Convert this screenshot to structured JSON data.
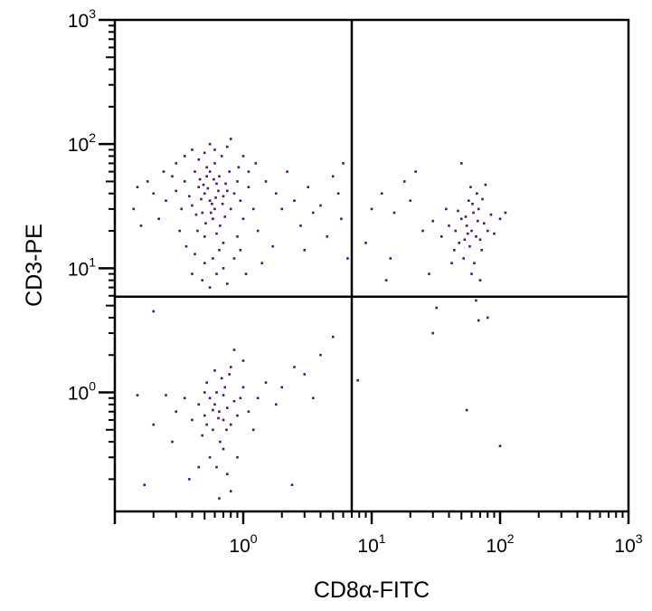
{
  "chart_data": {
    "type": "scatter",
    "xlabel": "CD8α-FITC",
    "ylabel": "CD3-PE",
    "xscale": "log",
    "yscale": "log",
    "xlim": [
      0.1,
      1000
    ],
    "ylim": [
      0.11,
      1000
    ],
    "xticks": [
      {
        "base": "10",
        "exp": "0",
        "value": 1
      },
      {
        "base": "10",
        "exp": "1",
        "value": 10
      },
      {
        "base": "10",
        "exp": "2",
        "value": 100
      },
      {
        "base": "10",
        "exp": "3",
        "value": 1000
      }
    ],
    "yticks": [
      {
        "base": "10",
        "exp": "0",
        "value": 1
      },
      {
        "base": "10",
        "exp": "1",
        "value": 10
      },
      {
        "base": "10",
        "exp": "2",
        "value": 100
      },
      {
        "base": "10",
        "exp": "3",
        "value": 1000
      }
    ],
    "quadrant_gates": {
      "x": 7,
      "y": 5.9
    },
    "point_color": "#4b1670",
    "grid": false,
    "points": [
      [
        0.55,
        35
      ],
      [
        0.5,
        40
      ],
      [
        0.6,
        30
      ],
      [
        0.45,
        45
      ],
      [
        0.7,
        38
      ],
      [
        0.52,
        55
      ],
      [
        0.62,
        48
      ],
      [
        0.4,
        32
      ],
      [
        0.58,
        25
      ],
      [
        0.66,
        22
      ],
      [
        0.48,
        28
      ],
      [
        0.75,
        42
      ],
      [
        0.35,
        50
      ],
      [
        0.8,
        30
      ],
      [
        0.55,
        60
      ],
      [
        0.6,
        70
      ],
      [
        0.5,
        18
      ],
      [
        0.7,
        16
      ],
      [
        0.44,
        20
      ],
      [
        0.9,
        50
      ],
      [
        0.38,
        38
      ],
      [
        0.65,
        55
      ],
      [
        0.53,
        44
      ],
      [
        0.57,
        33
      ],
      [
        0.47,
        36
      ],
      [
        0.72,
        26
      ],
      [
        0.62,
        19
      ],
      [
        0.42,
        60
      ],
      [
        0.85,
        40
      ],
      [
        0.3,
        42
      ],
      [
        0.33,
        30
      ],
      [
        0.95,
        35
      ],
      [
        1.0,
        25
      ],
      [
        1.1,
        45
      ],
      [
        0.28,
        55
      ],
      [
        0.25,
        35
      ],
      [
        0.68,
        80
      ],
      [
        0.5,
        85
      ],
      [
        0.45,
        75
      ],
      [
        0.6,
        90
      ],
      [
        0.75,
        95
      ],
      [
        0.4,
        90
      ],
      [
        0.55,
        100
      ],
      [
        0.8,
        110
      ],
      [
        0.65,
        14
      ],
      [
        0.58,
        12
      ],
      [
        0.5,
        11
      ],
      [
        0.7,
        10
      ],
      [
        0.62,
        9
      ],
      [
        0.48,
        8
      ],
      [
        0.55,
        7
      ],
      [
        0.75,
        7.5
      ],
      [
        0.4,
        9
      ],
      [
        0.85,
        12
      ],
      [
        0.9,
        18
      ],
      [
        1.2,
        30
      ],
      [
        1.3,
        20
      ],
      [
        1.5,
        50
      ],
      [
        1.8,
        40
      ],
      [
        2.0,
        30
      ],
      [
        0.22,
        25
      ],
      [
        0.2,
        40
      ],
      [
        0.18,
        50
      ],
      [
        0.15,
        45
      ],
      [
        0.14,
        30
      ],
      [
        0.16,
        22
      ],
      [
        0.24,
        60
      ],
      [
        0.3,
        70
      ],
      [
        0.35,
        80
      ],
      [
        0.32,
        20
      ],
      [
        0.36,
        15
      ],
      [
        0.42,
        13
      ],
      [
        0.95,
        14
      ],
      [
        1.05,
        9
      ],
      [
        1.1,
        60
      ],
      [
        1.25,
        70
      ],
      [
        1.0,
        80
      ],
      [
        0.92,
        65
      ],
      [
        0.78,
        60
      ],
      [
        0.52,
        65
      ],
      [
        0.46,
        52
      ],
      [
        0.64,
        42
      ],
      [
        0.69,
        33
      ],
      [
        0.56,
        28
      ],
      [
        0.51,
        23
      ],
      [
        0.61,
        37
      ],
      [
        0.49,
        47
      ],
      [
        0.59,
        52
      ],
      [
        0.43,
        27
      ],
      [
        0.73,
        48
      ],
      [
        2.5,
        35
      ],
      [
        2.8,
        22
      ],
      [
        3.2,
        45
      ],
      [
        3.5,
        28
      ],
      [
        4.0,
        32
      ],
      [
        5.0,
        55
      ],
      [
        5.5,
        40
      ],
      [
        6.0,
        70
      ],
      [
        4.5,
        18
      ],
      [
        6.5,
        12
      ],
      [
        2.2,
        60
      ],
      [
        1.7,
        15
      ],
      [
        1.4,
        11
      ],
      [
        3.0,
        14
      ],
      [
        5.8,
        25
      ],
      [
        0.65,
        0.7
      ],
      [
        0.6,
        0.8
      ],
      [
        0.7,
        0.6
      ],
      [
        0.55,
        0.9
      ],
      [
        0.75,
        0.75
      ],
      [
        0.5,
        0.65
      ],
      [
        0.8,
        0.55
      ],
      [
        0.62,
        1.0
      ],
      [
        0.72,
        1.1
      ],
      [
        0.58,
        0.5
      ],
      [
        0.45,
        0.8
      ],
      [
        0.85,
        0.85
      ],
      [
        0.9,
        0.65
      ],
      [
        0.52,
        1.2
      ],
      [
        0.68,
        1.3
      ],
      [
        0.78,
        1.4
      ],
      [
        0.4,
        0.6
      ],
      [
        0.48,
        0.45
      ],
      [
        0.66,
        0.4
      ],
      [
        0.95,
        0.9
      ],
      [
        1.0,
        1.1
      ],
      [
        1.1,
        0.7
      ],
      [
        0.35,
        0.9
      ],
      [
        0.3,
        0.7
      ],
      [
        0.6,
        1.5
      ],
      [
        0.8,
        1.6
      ],
      [
        0.7,
        0.35
      ],
      [
        0.55,
        0.3
      ],
      [
        0.62,
        0.25
      ],
      [
        0.75,
        0.22
      ],
      [
        0.45,
        0.25
      ],
      [
        0.8,
        0.16
      ],
      [
        0.65,
        0.14
      ],
      [
        0.38,
        0.2
      ],
      [
        1.2,
        0.5
      ],
      [
        1.3,
        0.9
      ],
      [
        1.5,
        1.2
      ],
      [
        1.8,
        0.8
      ],
      [
        2.0,
        1.1
      ],
      [
        0.25,
        0.95
      ],
      [
        0.2,
        0.55
      ],
      [
        0.17,
        0.18
      ],
      [
        0.28,
        0.4
      ],
      [
        0.9,
        0.3
      ],
      [
        0.52,
        0.55
      ],
      [
        0.58,
        0.72
      ],
      [
        0.7,
        0.95
      ],
      [
        0.64,
        0.62
      ],
      [
        0.74,
        0.5
      ],
      [
        0.5,
        1.0
      ],
      [
        0.85,
        2.2
      ],
      [
        1.0,
        1.8
      ],
      [
        2.5,
        1.6
      ],
      [
        3.0,
        1.4
      ],
      [
        4.0,
        2.0
      ],
      [
        5.0,
        2.8
      ],
      [
        3.5,
        0.9
      ],
      [
        2.4,
        0.18
      ],
      [
        0.15,
        0.95
      ],
      [
        0.2,
        4.5
      ],
      [
        7.8,
        1.25
      ],
      [
        60,
        20
      ],
      [
        55,
        22
      ],
      [
        65,
        18
      ],
      [
        50,
        25
      ],
      [
        70,
        17
      ],
      [
        58,
        15
      ],
      [
        62,
        28
      ],
      [
        45,
        20
      ],
      [
        75,
        23
      ],
      [
        68,
        30
      ],
      [
        52,
        12
      ],
      [
        57,
        35
      ],
      [
        80,
        20
      ],
      [
        48,
        16
      ],
      [
        66,
        40
      ],
      [
        72,
        14
      ],
      [
        54,
        26
      ],
      [
        63,
        11
      ],
      [
        85,
        27
      ],
      [
        40,
        22
      ],
      [
        59,
        45
      ],
      [
        77,
        47
      ],
      [
        90,
        19
      ],
      [
        100,
        25
      ],
      [
        110,
        28
      ],
      [
        35,
        18
      ],
      [
        38,
        30
      ],
      [
        30,
        24
      ],
      [
        25,
        20
      ],
      [
        20,
        35
      ],
      [
        15,
        28
      ],
      [
        12,
        40
      ],
      [
        10,
        30
      ],
      [
        18,
        50
      ],
      [
        22,
        60
      ],
      [
        50,
        70
      ],
      [
        14,
        12
      ],
      [
        9,
        16
      ],
      [
        13,
        8
      ],
      [
        28,
        9
      ],
      [
        42,
        11
      ],
      [
        60,
        9
      ],
      [
        70,
        8
      ],
      [
        44,
        14
      ],
      [
        67,
        24
      ],
      [
        56,
        19
      ],
      [
        61,
        33
      ],
      [
        73,
        36
      ],
      [
        47,
        29
      ],
      [
        53,
        17
      ],
      [
        65,
        5.5
      ],
      [
        80,
        4
      ],
      [
        32,
        4.8
      ],
      [
        30,
        3
      ],
      [
        55,
        0.72
      ],
      [
        100,
        0.37
      ],
      [
        68,
        3.8
      ]
    ]
  }
}
